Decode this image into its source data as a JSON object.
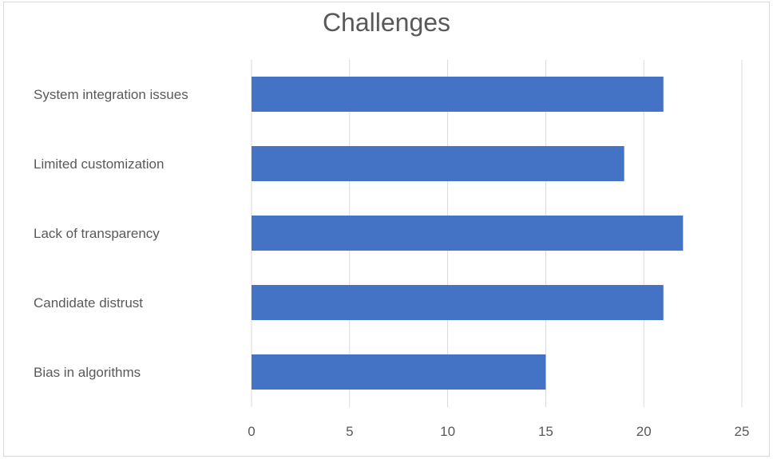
{
  "chart_data": {
    "type": "bar",
    "orientation": "horizontal",
    "title": "Challenges",
    "xlabel": "",
    "ylabel": "",
    "categories": [
      "System integration issues",
      "Limited customization",
      "Lack of transparency",
      "Candidate distrust",
      "Bias in algorithms"
    ],
    "values": [
      21,
      19,
      22,
      21,
      15
    ],
    "xlim": [
      0,
      25
    ],
    "xticks": [
      "0",
      "5",
      "10",
      "15",
      "20",
      "25"
    ],
    "grid": true,
    "legend": "none",
    "bar_color": "#4472C4",
    "grid_color": "#d9d9d9",
    "text_color": "#595959"
  }
}
